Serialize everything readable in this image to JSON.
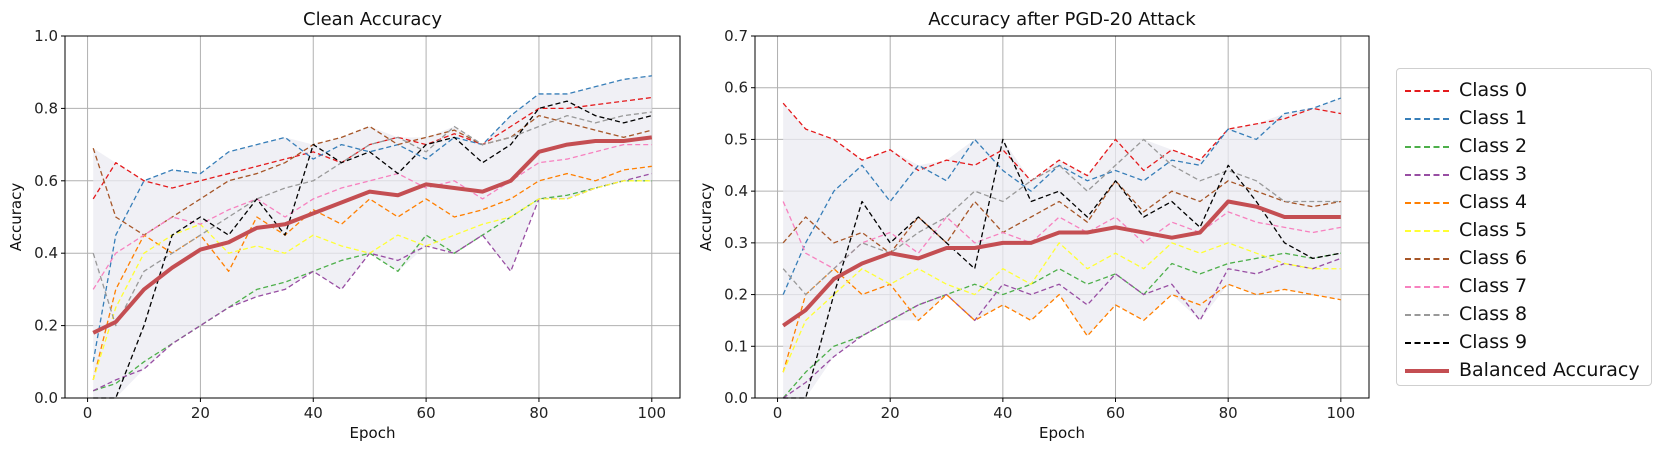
{
  "chart_data": [
    {
      "type": "line",
      "title": "Clean Accuracy",
      "xlabel": "Epoch",
      "ylabel": "Accuracy",
      "xlim": [
        -4,
        105
      ],
      "ylim": [
        0,
        1.0
      ],
      "xticks": [
        "0",
        "20",
        "40",
        "60",
        "80",
        "100"
      ],
      "yticks": [
        "0.0",
        "0.2",
        "0.4",
        "0.6",
        "0.8",
        "1.0"
      ],
      "grid": true,
      "band_color": "#ebebf2",
      "x": [
        1,
        5,
        10,
        15,
        20,
        25,
        30,
        35,
        40,
        45,
        50,
        55,
        60,
        65,
        70,
        75,
        80,
        85,
        90,
        95,
        100
      ],
      "series": [
        {
          "name": "Class 0",
          "color": "#e41a1c",
          "dashed": true,
          "values": [
            0.55,
            0.65,
            0.6,
            0.58,
            0.6,
            0.62,
            0.64,
            0.66,
            0.68,
            0.65,
            0.7,
            0.72,
            0.7,
            0.73,
            0.7,
            0.75,
            0.8,
            0.8,
            0.81,
            0.82,
            0.83
          ]
        },
        {
          "name": "Class 1",
          "color": "#377eb8",
          "dashed": true,
          "values": [
            0.1,
            0.45,
            0.6,
            0.63,
            0.62,
            0.68,
            0.7,
            0.72,
            0.66,
            0.7,
            0.68,
            0.7,
            0.66,
            0.72,
            0.7,
            0.78,
            0.84,
            0.84,
            0.86,
            0.88,
            0.89
          ]
        },
        {
          "name": "Class 2",
          "color": "#4daf4a",
          "dashed": true,
          "values": [
            0.02,
            0.04,
            0.1,
            0.15,
            0.2,
            0.25,
            0.3,
            0.32,
            0.35,
            0.38,
            0.4,
            0.35,
            0.45,
            0.4,
            0.45,
            0.5,
            0.55,
            0.56,
            0.58,
            0.6,
            0.6
          ]
        },
        {
          "name": "Class 3",
          "color": "#984ea3",
          "dashed": true,
          "values": [
            0.02,
            0.05,
            0.08,
            0.15,
            0.2,
            0.25,
            0.28,
            0.3,
            0.35,
            0.3,
            0.4,
            0.38,
            0.42,
            0.4,
            0.45,
            0.35,
            0.55,
            0.55,
            0.58,
            0.6,
            0.62
          ]
        },
        {
          "name": "Class 4",
          "color": "#ff7f00",
          "dashed": true,
          "values": [
            0.05,
            0.3,
            0.45,
            0.4,
            0.45,
            0.35,
            0.5,
            0.45,
            0.52,
            0.48,
            0.55,
            0.5,
            0.55,
            0.5,
            0.52,
            0.55,
            0.6,
            0.62,
            0.6,
            0.63,
            0.64
          ]
        },
        {
          "name": "Class 5",
          "color": "#ffff33",
          "dashed": true,
          "values": [
            0.05,
            0.25,
            0.4,
            0.45,
            0.48,
            0.4,
            0.42,
            0.4,
            0.45,
            0.42,
            0.4,
            0.45,
            0.42,
            0.45,
            0.48,
            0.5,
            0.55,
            0.55,
            0.58,
            0.6,
            0.6
          ]
        },
        {
          "name": "Class 6",
          "color": "#a65628",
          "dashed": true,
          "values": [
            0.69,
            0.5,
            0.45,
            0.5,
            0.55,
            0.6,
            0.62,
            0.65,
            0.7,
            0.72,
            0.75,
            0.7,
            0.72,
            0.74,
            0.7,
            0.72,
            0.78,
            0.76,
            0.74,
            0.72,
            0.74
          ]
        },
        {
          "name": "Class 7",
          "color": "#f781bf",
          "dashed": true,
          "values": [
            0.3,
            0.4,
            0.45,
            0.5,
            0.48,
            0.52,
            0.55,
            0.5,
            0.55,
            0.58,
            0.6,
            0.62,
            0.58,
            0.6,
            0.55,
            0.6,
            0.65,
            0.66,
            0.68,
            0.7,
            0.7
          ]
        },
        {
          "name": "Class 8",
          "color": "#999999",
          "dashed": true,
          "values": [
            0.4,
            0.2,
            0.35,
            0.4,
            0.45,
            0.5,
            0.55,
            0.58,
            0.6,
            0.65,
            0.7,
            0.72,
            0.68,
            0.75,
            0.7,
            0.72,
            0.75,
            0.78,
            0.76,
            0.78,
            0.79
          ]
        },
        {
          "name": "Class 9",
          "color": "#000000",
          "dashed": true,
          "values": [
            0.0,
            0.0,
            0.2,
            0.45,
            0.5,
            0.45,
            0.55,
            0.45,
            0.7,
            0.65,
            0.68,
            0.62,
            0.7,
            0.72,
            0.65,
            0.7,
            0.8,
            0.82,
            0.78,
            0.76,
            0.78
          ]
        },
        {
          "name": "Balanced Accuracy",
          "color": "#c44e52",
          "dashed": false,
          "values": [
            0.18,
            0.21,
            0.3,
            0.36,
            0.41,
            0.43,
            0.47,
            0.48,
            0.51,
            0.54,
            0.57,
            0.56,
            0.59,
            0.58,
            0.57,
            0.6,
            0.68,
            0.7,
            0.71,
            0.71,
            0.72
          ]
        }
      ]
    },
    {
      "type": "line",
      "title": "Accuracy after PGD-20 Attack",
      "xlabel": "Epoch",
      "ylabel": "Accuracy",
      "xlim": [
        -4,
        105
      ],
      "ylim": [
        0,
        0.7
      ],
      "xticks": [
        "0",
        "20",
        "40",
        "60",
        "80",
        "100"
      ],
      "yticks": [
        "0.0",
        "0.1",
        "0.2",
        "0.3",
        "0.4",
        "0.5",
        "0.6",
        "0.7"
      ],
      "grid": true,
      "band_color": "#ebebf2",
      "x": [
        1,
        5,
        10,
        15,
        20,
        25,
        30,
        35,
        40,
        45,
        50,
        55,
        60,
        65,
        70,
        75,
        80,
        85,
        90,
        95,
        100
      ],
      "series": [
        {
          "name": "Class 0",
          "color": "#e41a1c",
          "dashed": true,
          "values": [
            0.57,
            0.52,
            0.5,
            0.46,
            0.48,
            0.44,
            0.46,
            0.45,
            0.48,
            0.42,
            0.46,
            0.43,
            0.5,
            0.44,
            0.48,
            0.46,
            0.52,
            0.53,
            0.54,
            0.56,
            0.55
          ]
        },
        {
          "name": "Class 1",
          "color": "#377eb8",
          "dashed": true,
          "values": [
            0.2,
            0.3,
            0.4,
            0.45,
            0.38,
            0.45,
            0.42,
            0.5,
            0.44,
            0.4,
            0.45,
            0.42,
            0.44,
            0.42,
            0.46,
            0.45,
            0.52,
            0.5,
            0.55,
            0.56,
            0.58
          ]
        },
        {
          "name": "Class 2",
          "color": "#4daf4a",
          "dashed": true,
          "values": [
            0.0,
            0.05,
            0.1,
            0.12,
            0.15,
            0.18,
            0.2,
            0.22,
            0.2,
            0.22,
            0.25,
            0.22,
            0.24,
            0.2,
            0.26,
            0.24,
            0.26,
            0.27,
            0.28,
            0.27,
            0.28
          ]
        },
        {
          "name": "Class 3",
          "color": "#984ea3",
          "dashed": true,
          "values": [
            0.0,
            0.03,
            0.08,
            0.12,
            0.15,
            0.18,
            0.2,
            0.15,
            0.22,
            0.2,
            0.22,
            0.18,
            0.24,
            0.2,
            0.22,
            0.15,
            0.25,
            0.24,
            0.26,
            0.25,
            0.27
          ]
        },
        {
          "name": "Class 4",
          "color": "#ff7f00",
          "dashed": true,
          "values": [
            0.05,
            0.2,
            0.25,
            0.2,
            0.22,
            0.15,
            0.2,
            0.15,
            0.18,
            0.15,
            0.2,
            0.12,
            0.18,
            0.15,
            0.2,
            0.18,
            0.22,
            0.2,
            0.21,
            0.2,
            0.19
          ]
        },
        {
          "name": "Class 5",
          "color": "#ffff33",
          "dashed": true,
          "values": [
            0.05,
            0.15,
            0.2,
            0.25,
            0.22,
            0.25,
            0.22,
            0.2,
            0.25,
            0.22,
            0.3,
            0.25,
            0.28,
            0.25,
            0.3,
            0.28,
            0.3,
            0.28,
            0.26,
            0.25,
            0.25
          ]
        },
        {
          "name": "Class 6",
          "color": "#a65628",
          "dashed": true,
          "values": [
            0.3,
            0.35,
            0.3,
            0.32,
            0.28,
            0.35,
            0.3,
            0.38,
            0.32,
            0.35,
            0.38,
            0.34,
            0.42,
            0.36,
            0.4,
            0.38,
            0.42,
            0.4,
            0.38,
            0.37,
            0.38
          ]
        },
        {
          "name": "Class 7",
          "color": "#f781bf",
          "dashed": true,
          "values": [
            0.38,
            0.28,
            0.25,
            0.3,
            0.32,
            0.28,
            0.35,
            0.3,
            0.32,
            0.3,
            0.35,
            0.32,
            0.35,
            0.3,
            0.34,
            0.32,
            0.36,
            0.34,
            0.33,
            0.32,
            0.33
          ]
        },
        {
          "name": "Class 8",
          "color": "#999999",
          "dashed": true,
          "values": [
            0.25,
            0.2,
            0.25,
            0.3,
            0.28,
            0.32,
            0.35,
            0.4,
            0.38,
            0.42,
            0.45,
            0.4,
            0.45,
            0.5,
            0.45,
            0.42,
            0.44,
            0.42,
            0.38,
            0.38,
            0.38
          ]
        },
        {
          "name": "Class 9",
          "color": "#000000",
          "dashed": true,
          "values": [
            0.0,
            0.0,
            0.2,
            0.38,
            0.3,
            0.35,
            0.3,
            0.25,
            0.5,
            0.38,
            0.4,
            0.35,
            0.42,
            0.35,
            0.38,
            0.33,
            0.45,
            0.38,
            0.3,
            0.27,
            0.28
          ]
        },
        {
          "name": "Balanced Accuracy",
          "color": "#c44e52",
          "dashed": false,
          "values": [
            0.14,
            0.17,
            0.23,
            0.26,
            0.28,
            0.27,
            0.29,
            0.29,
            0.3,
            0.3,
            0.32,
            0.32,
            0.33,
            0.32,
            0.31,
            0.32,
            0.38,
            0.37,
            0.35,
            0.35,
            0.35
          ]
        }
      ]
    }
  ],
  "legend": {
    "placement": "right",
    "entries": [
      "Class 0",
      "Class 1",
      "Class 2",
      "Class 3",
      "Class 4",
      "Class 5",
      "Class 6",
      "Class 7",
      "Class 8",
      "Class 9",
      "Balanced Accuracy"
    ],
    "colors": [
      "#e41a1c",
      "#377eb8",
      "#4daf4a",
      "#984ea3",
      "#ff7f00",
      "#ffff33",
      "#a65628",
      "#f781bf",
      "#999999",
      "#000000",
      "#c44e52"
    ]
  }
}
